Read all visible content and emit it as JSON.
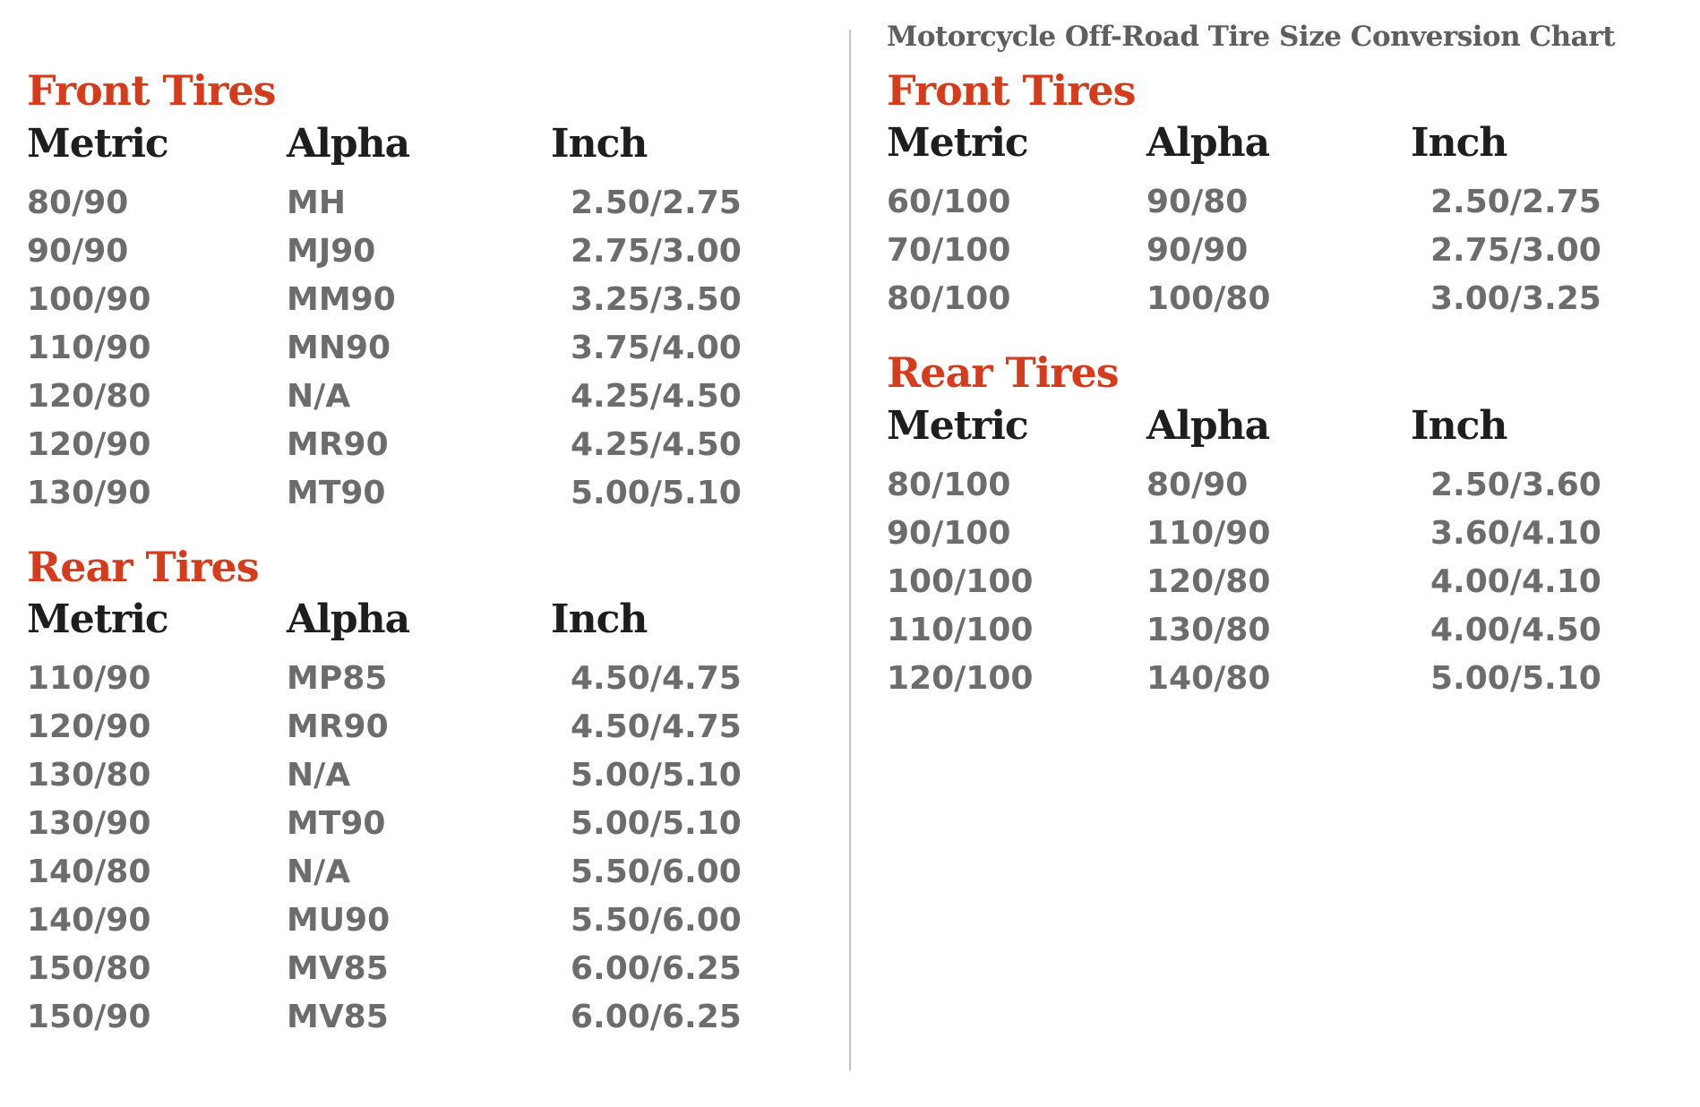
{
  "page": {
    "background": "#ffffff",
    "divider_color": "#c2c2c4"
  },
  "colors": {
    "accent_red": "#d63c1b",
    "column_header_dark": "#1e1e20",
    "data_gray": "#6c6c6e",
    "title_gray": "#5d5e61"
  },
  "left_panel": {
    "sections": [
      {
        "heading": "Front Tires",
        "columns": [
          "Metric",
          "Alpha",
          "Inch"
        ],
        "rows": [
          [
            "80/90",
            "MH",
            "2.50/2.75"
          ],
          [
            "90/90",
            "MJ90",
            "2.75/3.00"
          ],
          [
            "100/90",
            "MM90",
            "3.25/3.50"
          ],
          [
            "110/90",
            "MN90",
            "3.75/4.00"
          ],
          [
            "120/80",
            "N/A",
            "4.25/4.50"
          ],
          [
            "120/90",
            "MR90",
            "4.25/4.50"
          ],
          [
            "130/90",
            "MT90",
            "5.00/5.10"
          ]
        ]
      },
      {
        "heading": "Rear Tires",
        "columns": [
          "Metric",
          "Alpha",
          "Inch"
        ],
        "rows": [
          [
            "110/90",
            "MP85",
            "4.50/4.75"
          ],
          [
            "120/90",
            "MR90",
            "4.50/4.75"
          ],
          [
            "130/80",
            "N/A",
            "5.00/5.10"
          ],
          [
            "130/90",
            "MT90",
            "5.00/5.10"
          ],
          [
            "140/80",
            "N/A",
            "5.50/6.00"
          ],
          [
            "140/90",
            "MU90",
            "5.50/6.00"
          ],
          [
            "150/80",
            "MV85",
            "6.00/6.25"
          ],
          [
            "150/90",
            "MV85",
            "6.00/6.25"
          ]
        ]
      }
    ]
  },
  "right_panel": {
    "title": "Motorcycle Off-Road Tire Size Conversion Chart",
    "sections": [
      {
        "heading": "Front Tires",
        "columns": [
          "Metric",
          "Alpha",
          "Inch"
        ],
        "rows": [
          [
            "60/100",
            "90/80",
            "2.50/2.75"
          ],
          [
            "70/100",
            "90/90",
            "2.75/3.00"
          ],
          [
            "80/100",
            "100/80",
            "3.00/3.25"
          ]
        ]
      },
      {
        "heading": "Rear Tires",
        "columns": [
          "Metric",
          "Alpha",
          "Inch"
        ],
        "rows": [
          [
            "80/100",
            "80/90",
            "2.50/3.60"
          ],
          [
            "90/100",
            "110/90",
            "3.60/4.10"
          ],
          [
            "100/100",
            "120/80",
            "4.00/4.10"
          ],
          [
            "110/100",
            "130/80",
            "4.00/4.50"
          ],
          [
            "120/100",
            "140/80",
            "5.00/5.10"
          ]
        ]
      }
    ]
  }
}
